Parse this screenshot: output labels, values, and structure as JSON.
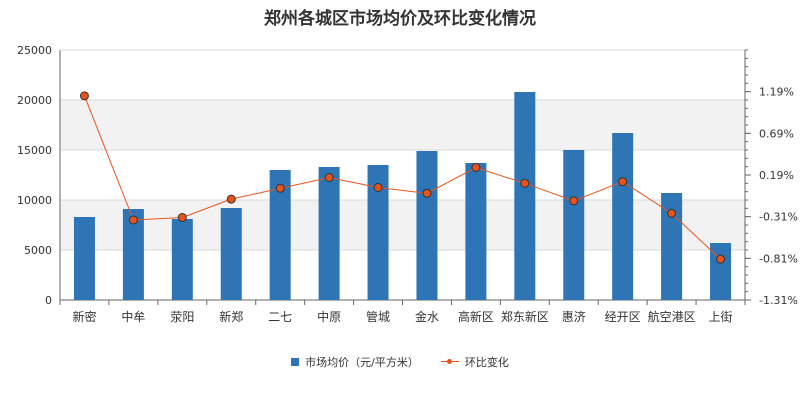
{
  "chart_data": {
    "type": "bar",
    "title": "郑州各城区市场均价及环比变化情况",
    "categories": [
      "新密",
      "中牟",
      "荥阳",
      "新郑",
      "二七",
      "中原",
      "管城",
      "金水",
      "高新区",
      "郑东新区",
      "惠济",
      "经开区",
      "航空港区",
      "上街"
    ],
    "series": [
      {
        "name": "市场均价（元/平方米）",
        "type": "bar",
        "axis": "left",
        "values": [
          8300,
          9100,
          8100,
          9200,
          13000,
          13300,
          13500,
          14900,
          13700,
          20800,
          15000,
          16700,
          10700,
          5700
        ]
      },
      {
        "name": "环比变化",
        "type": "line",
        "axis": "right",
        "unit": "%",
        "values": [
          1.14,
          -0.35,
          -0.32,
          -0.1,
          0.03,
          0.16,
          0.04,
          -0.03,
          0.28,
          0.09,
          -0.12,
          0.11,
          -0.27,
          -0.82
        ]
      }
    ],
    "left_axis": {
      "min": 0,
      "max": 25000,
      "ticks": [
        0,
        5000,
        10000,
        15000,
        20000,
        25000
      ]
    },
    "right_axis": {
      "min": -1.31,
      "max": 1.69,
      "ticks": [
        "1.19%",
        "0.69%",
        "0.19%",
        "-0.31%",
        "-0.81%",
        "-1.31%"
      ]
    },
    "colors": {
      "bar": "#2e75b6",
      "line": "#e8531c",
      "band": "#f2f2f2"
    },
    "legend_position": "bottom-center",
    "grid": true
  }
}
